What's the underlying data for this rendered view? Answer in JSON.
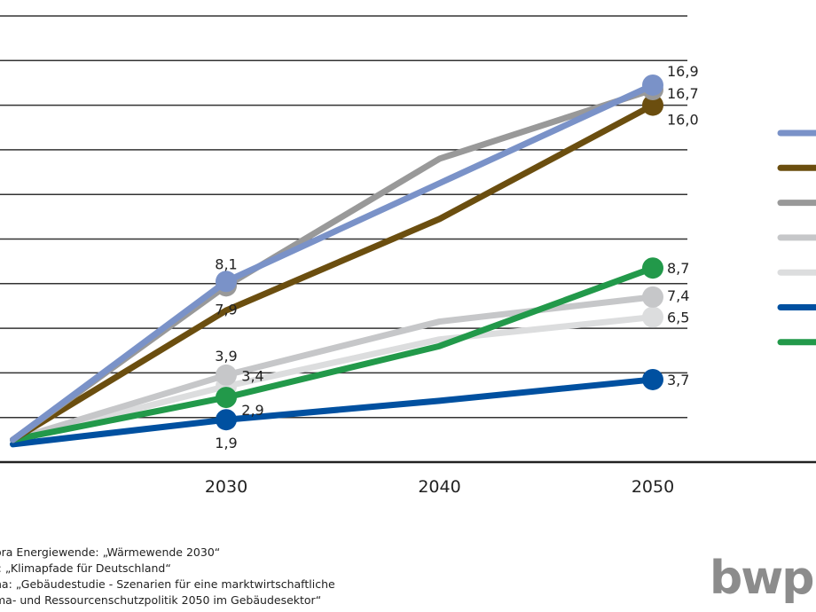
{
  "chart_data": {
    "type": "line",
    "x": [
      2020,
      2030,
      2040,
      2050
    ],
    "xtick_labels": [
      "2030",
      "2040",
      "2050"
    ],
    "ylim": [
      0,
      20
    ],
    "yticks": [
      0,
      2,
      4,
      6,
      8,
      10,
      12,
      14,
      16,
      18,
      20
    ],
    "grid": true,
    "legend_placement": "right",
    "series": [
      {
        "color": "#dcddde",
        "values": [
          1.0,
          3.4,
          5.5,
          6.5
        ],
        "data_labels": {
          "2030": "3,4",
          "2050": "6,5"
        }
      },
      {
        "color": "#c6c7c9",
        "values": [
          1.0,
          3.9,
          6.3,
          7.4
        ],
        "data_labels": {
          "2030": "3,9",
          "2050": "7,4"
        }
      },
      {
        "color": "#0050a0",
        "values": [
          0.8,
          1.9,
          2.75,
          3.7
        ],
        "data_labels": {
          "2030": "1,9",
          "2050": "3,7"
        }
      },
      {
        "color": "#22994a",
        "values": [
          1.0,
          2.9,
          5.2,
          8.7
        ],
        "data_labels": {
          "2030": "2,9",
          "2050": "8,7"
        }
      },
      {
        "color": "#6b4e0f",
        "values": [
          1.0,
          6.8,
          10.9,
          16.0
        ],
        "data_labels": {
          "2050": "16,0"
        }
      },
      {
        "color": "#999999",
        "values": [
          1.0,
          7.9,
          13.6,
          16.7
        ],
        "data_labels": {
          "2030": "7,9",
          "2050": "16,7"
        }
      },
      {
        "color": "#7a92c8",
        "values": [
          1.0,
          8.1,
          12.5,
          16.9
        ],
        "data_labels": {
          "2030": "8,1",
          "2050": "16,9"
        }
      }
    ],
    "legend_colors": [
      "#7a92c8",
      "#6b4e0f",
      "#999999",
      "#c6c7c9",
      "#dcddde",
      "#0050a0",
      "#22994a"
    ]
  },
  "sources": [
    "ora Energiewende: „Wärmewende 2030“",
    "I: „Klimapfade für Deutschland“",
    "na: „Gebäudestudie - Szenarien für eine marktwirtschaftliche",
    "ma- und Ressourcenschutzpolitik 2050 im Gebäudesektor“"
  ],
  "logo_text": "bwp"
}
